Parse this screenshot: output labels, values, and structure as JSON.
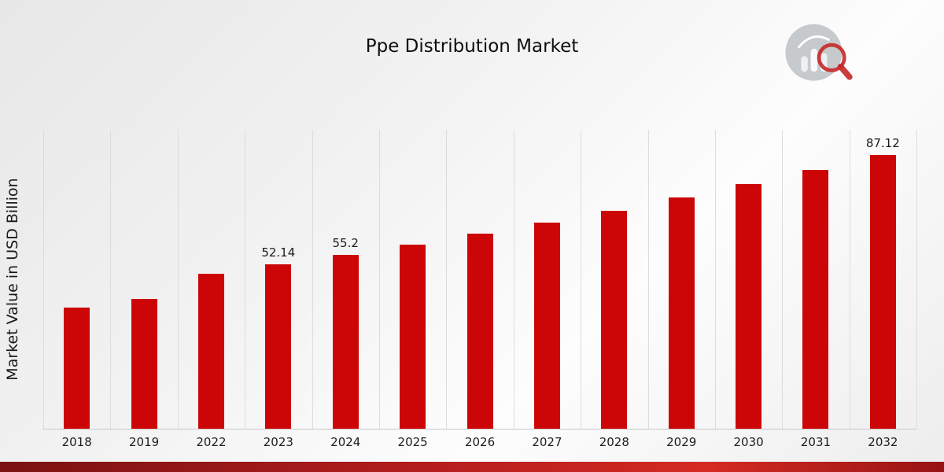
{
  "title": "Ppe Distribution Market",
  "y_axis_label": "Market Value in USD Billion",
  "logo": {
    "name": "bar-chart-magnifier-logo"
  },
  "colors": {
    "bar": "#cc0606",
    "gridline": "#dcdcdc",
    "footer_gradient": [
      "#7a1212",
      "#b41d1d",
      "#d42a22",
      "#971414"
    ],
    "logo_circle": "#c6cacd",
    "logo_accent": "#c62828"
  },
  "chart_data": {
    "type": "bar",
    "title": "Ppe Distribution Market",
    "xlabel": "",
    "ylabel": "Market Value in USD Billion",
    "categories": [
      "2018",
      "2019",
      "2022",
      "2023",
      "2024",
      "2025",
      "2026",
      "2027",
      "2028",
      "2029",
      "2030",
      "2031",
      "2032"
    ],
    "values": [
      38.5,
      41.2,
      49.3,
      52.14,
      55.2,
      58.4,
      61.9,
      65.5,
      69.3,
      73.4,
      77.7,
      82.3,
      87.12
    ],
    "data_labels": {
      "2023": "52.14",
      "2024": "55.2",
      "2032": "87.12"
    },
    "ylim": [
      0,
      95
    ],
    "grid": "vertical-only",
    "legend": "none",
    "bar_color": "#cc0606"
  }
}
